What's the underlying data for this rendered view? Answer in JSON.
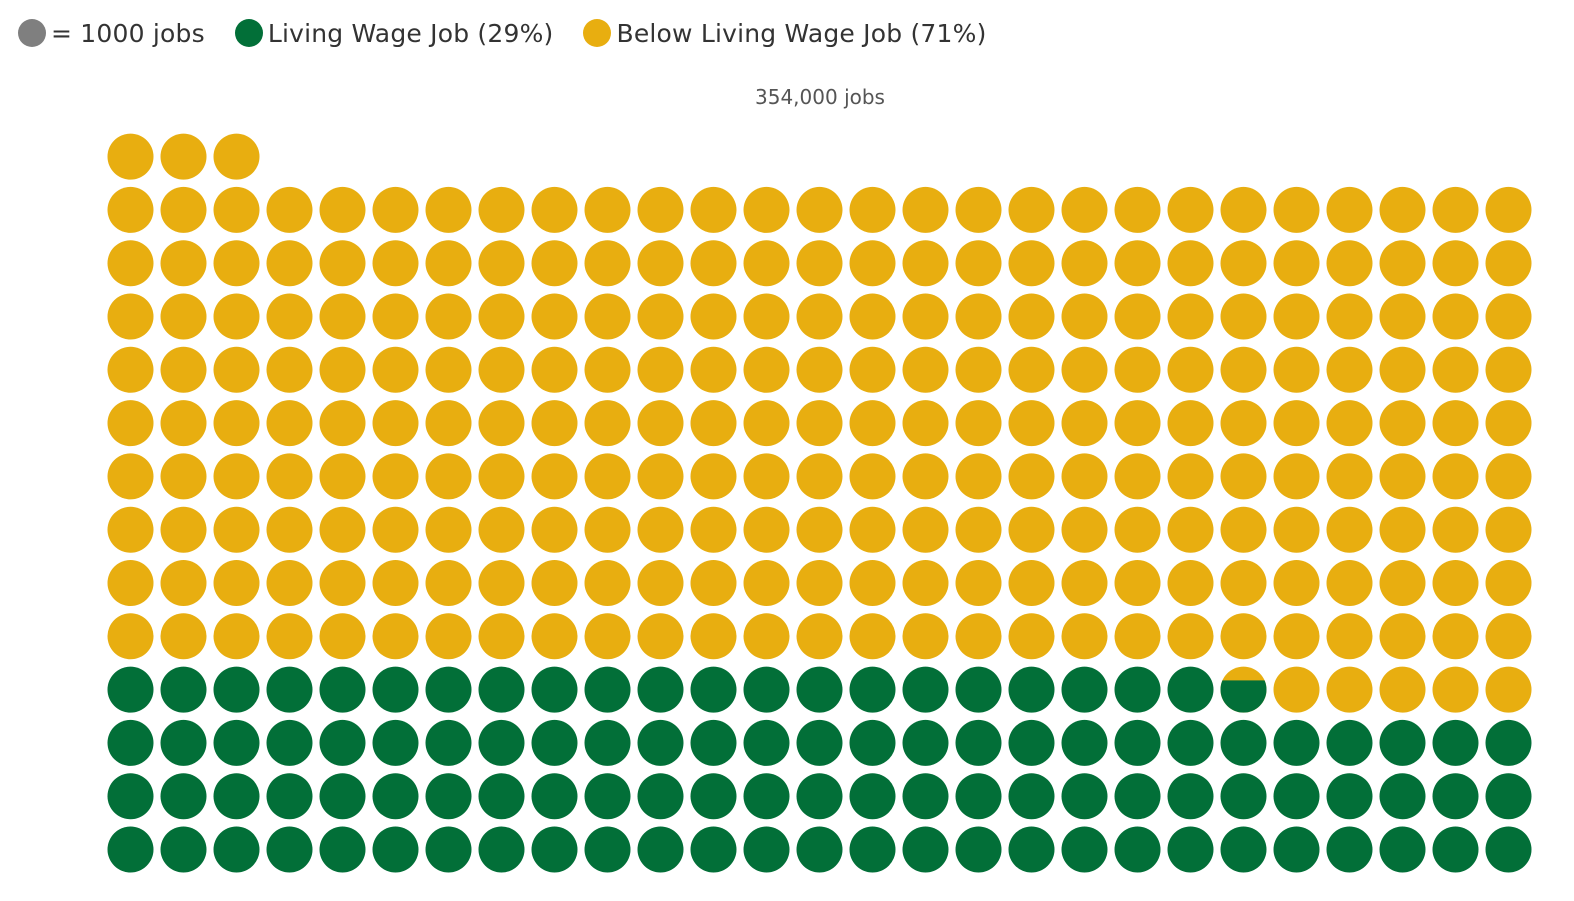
{
  "legend": {
    "unit_label": "= 1000 jobs",
    "living_label": "Living Wage Job (29%)",
    "below_label": "Below Living Wage Job (71%)"
  },
  "colors": {
    "unit": "#7f7f7f",
    "living": "#026f38",
    "below": "#e8ae10"
  },
  "chart_data": {
    "type": "waffle",
    "unit": "1000 jobs",
    "total_label": "354,000 jobs",
    "total": 354,
    "columns": 27,
    "categories": [
      "Living Wage Job",
      "Below Living Wage Job"
    ],
    "values": [
      102.7,
      251.3
    ],
    "percentages": [
      29,
      71
    ]
  }
}
